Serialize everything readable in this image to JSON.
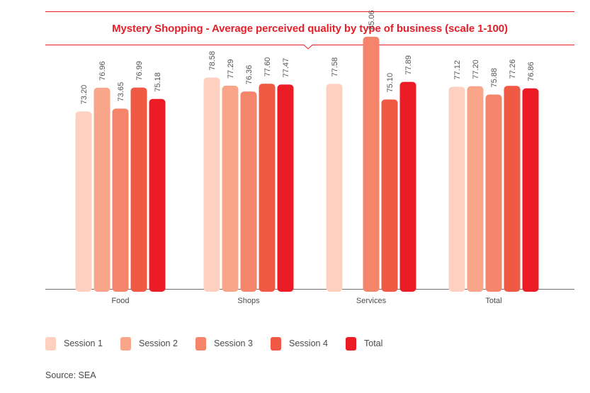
{
  "chart_data": {
    "type": "bar",
    "title": "Mystery Shopping - Average perceived quality by type of business (scale 1-100)",
    "categories": [
      "Food",
      "Shops",
      "Services",
      "Total"
    ],
    "series": [
      {
        "name": "Session 1",
        "color": "#fdd0bf",
        "values": [
          73.2,
          78.58,
          77.58,
          77.12
        ]
      },
      {
        "name": "Session 2",
        "color": "#f8a58a",
        "values": [
          76.96,
          77.29,
          null,
          77.2
        ]
      },
      {
        "name": "Session 3",
        "color": "#f4846a",
        "values": [
          73.65,
          76.36,
          85.06,
          75.88
        ]
      },
      {
        "name": "Session 4",
        "color": "#f05a45",
        "values": [
          76.99,
          77.6,
          75.1,
          77.26
        ]
      },
      {
        "name": "Total",
        "color": "#ec1c26",
        "values": [
          75.18,
          77.47,
          77.89,
          76.86
        ]
      }
    ],
    "value_labels": [
      [
        "73.20",
        "78.58",
        "77.58",
        "77.12"
      ],
      [
        "76.96",
        "77.29",
        "",
        "77.20"
      ],
      [
        "73.65",
        "76.36",
        "85.06",
        "75.88"
      ],
      [
        "76.99",
        "77.60",
        "75.10",
        "77.26"
      ],
      [
        "75.18",
        "77.47",
        "77.89",
        "76.86"
      ]
    ],
    "ylim": [
      45,
      90
    ],
    "grid": false,
    "legend_position": "bottom-left",
    "accent_color": "#e3202a"
  },
  "source": "Source: SEA"
}
